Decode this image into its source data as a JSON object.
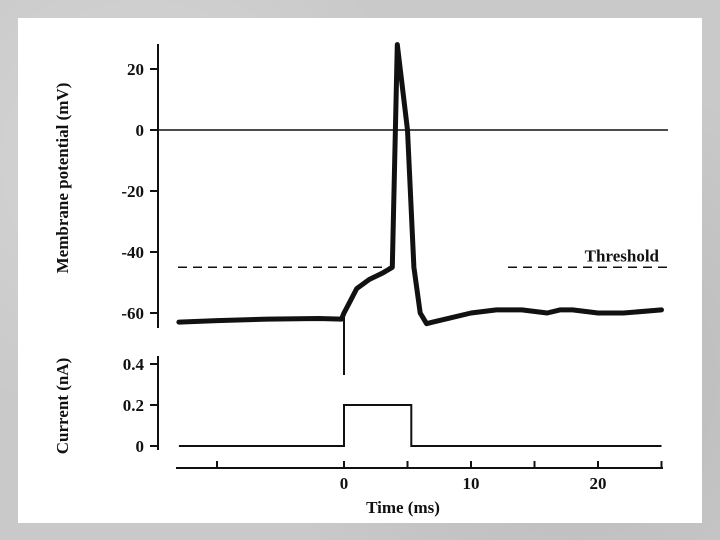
{
  "chart_data": [
    {
      "type": "line",
      "ylabel": "Membrane potential (mV)",
      "ylim": [
        -64,
        28
      ],
      "yticks": [
        20,
        0,
        -20,
        -40,
        -60
      ],
      "reference_lines": [
        {
          "y": 0,
          "style": "solid"
        },
        {
          "y": -45,
          "style": "dashed",
          "label": "Threshold"
        }
      ],
      "series": [
        {
          "x": [
            -13,
            -10,
            -6,
            -2,
            -0.2,
            0,
            0.5,
            1,
            2,
            3,
            3.8,
            4.2,
            5,
            5.5,
            6,
            6.5,
            7,
            8,
            10,
            12,
            14,
            16,
            17,
            18,
            20,
            22,
            25
          ],
          "y": [
            -63,
            -62.5,
            -62,
            -61.8,
            -62,
            -60,
            -56,
            -52,
            -49,
            -47,
            -45,
            28,
            0,
            -45,
            -60,
            -63.5,
            -63,
            -62,
            -60,
            -59,
            -59,
            -60,
            -59,
            -59,
            -60,
            -60,
            -59
          ]
        }
      ]
    },
    {
      "type": "line",
      "xlabel": "Time (ms)",
      "ylabel": "Current (nA)",
      "ylim": [
        0,
        0.4
      ],
      "yticks": [
        0.4,
        0.2,
        0
      ],
      "xlim": [
        -13,
        25
      ],
      "xticks": [
        0,
        10,
        20
      ],
      "series": [
        {
          "x": [
            -13,
            0,
            0,
            5.3,
            5.3,
            25
          ],
          "y": [
            0,
            0,
            0.2,
            0.2,
            0,
            0
          ]
        }
      ]
    }
  ]
}
